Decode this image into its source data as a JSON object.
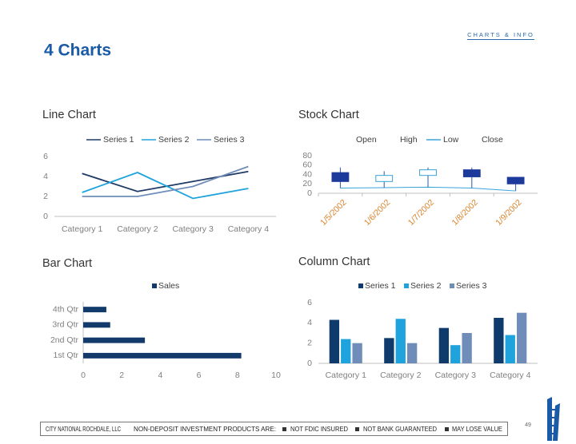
{
  "header": "CHARTS & INFO",
  "title": "4 Charts",
  "chart_data": [
    {
      "type": "line",
      "title": "Line Chart",
      "categories": [
        "Category 1",
        "Category 2",
        "Category 3",
        "Category 4"
      ],
      "series": [
        {
          "name": "Series 1",
          "color": "#1f3b66",
          "values": [
            4.3,
            2.5,
            3.5,
            4.5
          ]
        },
        {
          "name": "Series 2",
          "color": "#1ea3dc",
          "values": [
            2.4,
            4.4,
            1.8,
            2.8
          ]
        },
        {
          "name": "Series 3",
          "color": "#6f8db8",
          "values": [
            2,
            2,
            3,
            5
          ]
        }
      ],
      "ylim": [
        0,
        6
      ],
      "yticks": [
        0,
        2,
        4,
        6
      ],
      "grid": false
    },
    {
      "type": "stock",
      "title": "Stock Chart",
      "categories": [
        "1/5/2002",
        "1/6/2002",
        "1/7/2002",
        "1/8/2002",
        "1/9/2002"
      ],
      "series": [
        {
          "name": "Open",
          "values": [
            44,
            25,
            38,
            50,
            34
          ]
        },
        {
          "name": "High",
          "values": [
            55,
            47,
            55,
            55,
            35
          ]
        },
        {
          "name": "Low",
          "color": "#39a3da",
          "values": [
            11,
            12,
            13,
            11,
            5
          ]
        },
        {
          "name": "Close",
          "values": [
            25,
            38,
            50,
            35,
            20
          ]
        }
      ],
      "up_color": "#ffffff",
      "down_color": "#1c3a9c",
      "ylim": [
        0,
        80
      ],
      "yticks": [
        0,
        20,
        40,
        60,
        80
      ],
      "grid": false
    },
    {
      "type": "hbar",
      "title": "Bar Chart",
      "categories": [
        "1st Qtr",
        "2nd Qtr",
        "3rd Qtr",
        "4th Qtr"
      ],
      "series": [
        {
          "name": "Sales",
          "color": "#123a6b",
          "values": [
            8.2,
            3.2,
            1.4,
            1.2
          ]
        }
      ],
      "xlim": [
        0,
        10
      ],
      "xticks": [
        0,
        2,
        4,
        6,
        8,
        10
      ],
      "grid": false
    },
    {
      "type": "column",
      "title": "Column Chart",
      "categories": [
        "Category 1",
        "Category 2",
        "Category 3",
        "Category 4"
      ],
      "series": [
        {
          "name": "Series 1",
          "color": "#0f3a6c",
          "values": [
            4.3,
            2.5,
            3.5,
            4.5
          ]
        },
        {
          "name": "Series 2",
          "color": "#1ea3dc",
          "values": [
            2.4,
            4.4,
            1.8,
            2.8
          ]
        },
        {
          "name": "Series 3",
          "color": "#6f8db8",
          "values": [
            2,
            2,
            3,
            5
          ]
        }
      ],
      "ylim": [
        0,
        6
      ],
      "yticks": [
        0,
        2,
        4,
        6
      ],
      "grid": false
    }
  ],
  "footer": {
    "company": "CITY NATIONAL ROCHDALE, LLC",
    "notice": "NON-DEPOSIT INVESTMENT PRODUCTS ARE:",
    "items": [
      "NOT FDIC INSURED",
      "NOT BANK GUARANTEED",
      "MAY LOSE VALUE"
    ]
  },
  "page_number": 49
}
